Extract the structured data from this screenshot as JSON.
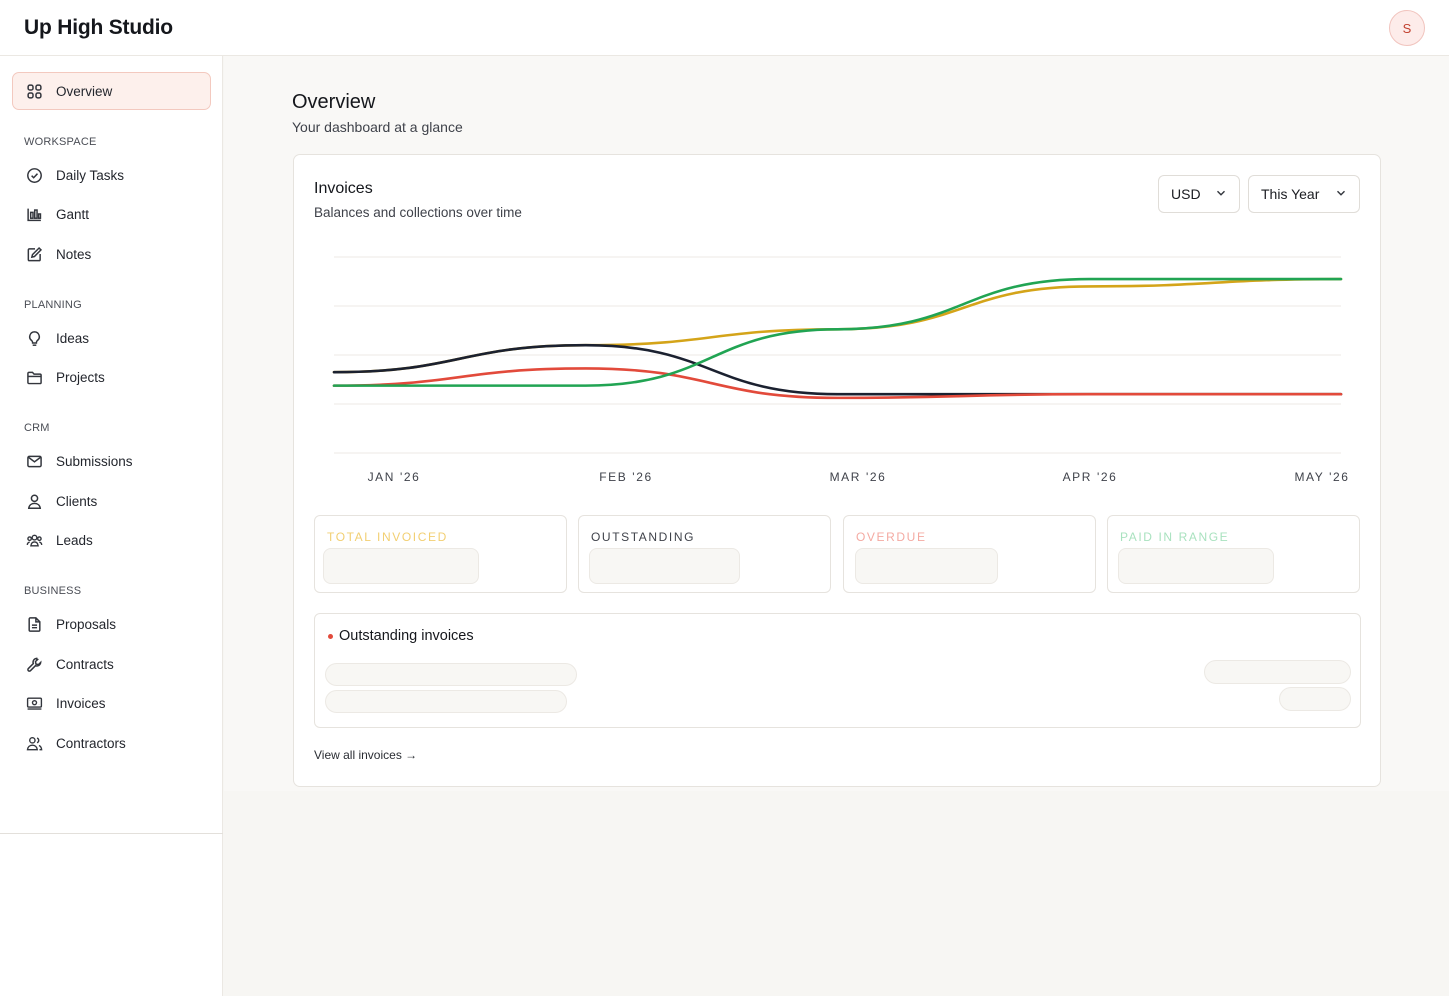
{
  "app": {
    "brand": "Up High Studio",
    "avatar_initial": "S"
  },
  "sidebar": {
    "overview": {
      "label": "Overview",
      "icon": "grid-icon"
    },
    "sections": [
      {
        "label": "WORKSPACE",
        "items": [
          {
            "label": "Daily Tasks",
            "icon": "check-circle-icon"
          },
          {
            "label": "Gantt",
            "icon": "gantt-chart-icon"
          },
          {
            "label": "Notes",
            "icon": "pencil-square-icon"
          }
        ]
      },
      {
        "label": "PLANNING",
        "items": [
          {
            "label": "Ideas",
            "icon": "lightbulb-icon"
          },
          {
            "label": "Projects",
            "icon": "folder-icon"
          }
        ]
      },
      {
        "label": "CRM",
        "items": [
          {
            "label": "Submissions",
            "icon": "mail-icon"
          },
          {
            "label": "Clients",
            "icon": "user-icon"
          },
          {
            "label": "Leads",
            "icon": "users-icon"
          }
        ]
      },
      {
        "label": "BUSINESS",
        "items": [
          {
            "label": "Proposals",
            "icon": "file-icon"
          },
          {
            "label": "Contracts",
            "icon": "wrench-icon"
          },
          {
            "label": "Invoices",
            "icon": "banknote-icon"
          },
          {
            "label": "Contractors",
            "icon": "user-group-icon"
          }
        ]
      }
    ]
  },
  "main": {
    "title": "Overview",
    "subtitle": "Your dashboard at a glance"
  },
  "invoices_card": {
    "title": "Invoices",
    "subtitle": "Balances and collections over time",
    "currency_select": "USD",
    "range_select": "This Year",
    "stats": [
      {
        "label": "TOTAL INVOICED",
        "color": "#f2cf72"
      },
      {
        "label": "OUTSTANDING",
        "color": "#3f424a"
      },
      {
        "label": "OVERDUE",
        "color": "#f4aaa2"
      },
      {
        "label": "PAID IN RANGE",
        "color": "#a9e2bf"
      }
    ],
    "outstanding_title": "Outstanding invoices",
    "view_all": "View all invoices →"
  },
  "chart_data": {
    "type": "line",
    "x": [
      "JAN '26",
      "FEB '26",
      "MAR '26",
      "APR '26",
      "MAY '26"
    ],
    "y_axis_labels": "none",
    "grid": true,
    "legend": "none",
    "series": [
      {
        "color": "#d4a419",
        "values": [
          0.66,
          0.88,
          1.01,
          1.36,
          1.42
        ]
      },
      {
        "color": "#1b2130",
        "values": [
          0.66,
          0.88,
          0.48,
          0.48,
          0.48
        ]
      },
      {
        "color": "#e24a3b",
        "values": [
          0.55,
          0.69,
          0.45,
          0.48,
          0.48
        ]
      },
      {
        "color": "#21a453",
        "values": [
          0.55,
          0.55,
          1.01,
          1.42,
          1.42
        ]
      }
    ]
  }
}
